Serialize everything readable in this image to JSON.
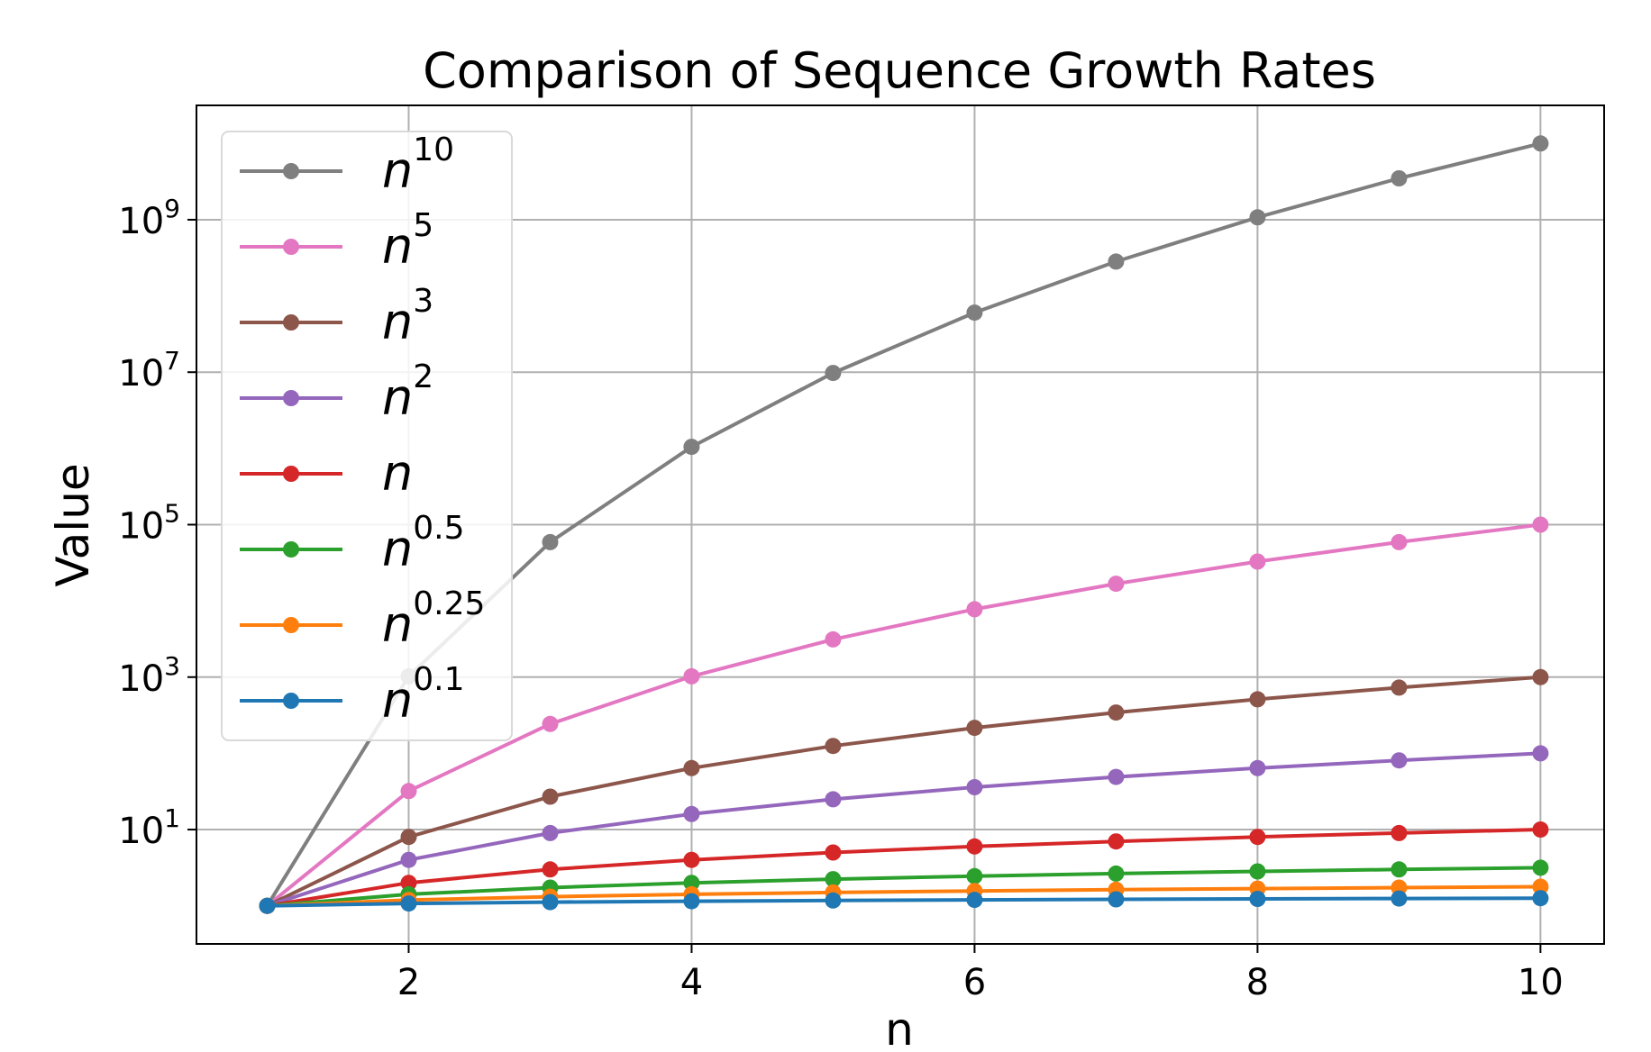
{
  "chart_data": {
    "type": "line",
    "title": "Comparison of Sequence Growth Rates",
    "xlabel": "n",
    "ylabel": "Value",
    "yscale": "log",
    "xlim": [
      0.5,
      10.45
    ],
    "ylim_exponent": [
      -0.5,
      10.5
    ],
    "grid": true,
    "legend_position": "upper-left",
    "x": [
      1,
      2,
      3,
      4,
      5,
      6,
      7,
      8,
      9,
      10
    ],
    "x_ticks": [
      {
        "value": 2,
        "label": "2"
      },
      {
        "value": 4,
        "label": "4"
      },
      {
        "value": 6,
        "label": "6"
      },
      {
        "value": 8,
        "label": "8"
      },
      {
        "value": 10,
        "label": "10"
      }
    ],
    "y_ticks": [
      {
        "exponent": 1,
        "base": "10",
        "sup": "1"
      },
      {
        "exponent": 3,
        "base": "10",
        "sup": "3"
      },
      {
        "exponent": 5,
        "base": "10",
        "sup": "5"
      },
      {
        "exponent": 7,
        "base": "10",
        "sup": "7"
      },
      {
        "exponent": 9,
        "base": "10",
        "sup": "9"
      }
    ],
    "series": [
      {
        "name_base": "n",
        "name_sup": "10",
        "color": "#7f7f7f",
        "values": [
          1,
          1024,
          59049,
          1048576,
          9765625,
          60466176,
          282475249,
          1073741824,
          3486784401,
          10000000000
        ]
      },
      {
        "name_base": "n",
        "name_sup": "5",
        "color": "#e377c2",
        "values": [
          1,
          32,
          243,
          1024,
          3125,
          7776,
          16807,
          32768,
          59049,
          100000
        ]
      },
      {
        "name_base": "n",
        "name_sup": "3",
        "color": "#8c564b",
        "values": [
          1,
          8,
          27,
          64,
          125,
          216,
          343,
          512,
          729,
          1000
        ]
      },
      {
        "name_base": "n",
        "name_sup": "2",
        "color": "#9467bd",
        "values": [
          1,
          4,
          9,
          16,
          25,
          36,
          49,
          64,
          81,
          100
        ]
      },
      {
        "name_base": "n",
        "name_sup": "",
        "color": "#d62728",
        "values": [
          1,
          2,
          3,
          4,
          5,
          6,
          7,
          8,
          9,
          10
        ]
      },
      {
        "name_base": "n",
        "name_sup": "0.5",
        "color": "#2ca02c",
        "values": [
          1,
          1.414,
          1.732,
          2,
          2.236,
          2.449,
          2.646,
          2.828,
          3,
          3.162
        ]
      },
      {
        "name_base": "n",
        "name_sup": "0.25",
        "color": "#ff7f0e",
        "values": [
          1,
          1.189,
          1.316,
          1.414,
          1.495,
          1.565,
          1.627,
          1.682,
          1.732,
          1.778
        ]
      },
      {
        "name_base": "n",
        "name_sup": "0.1",
        "color": "#1f77b4",
        "values": [
          1,
          1.072,
          1.116,
          1.149,
          1.175,
          1.196,
          1.215,
          1.231,
          1.246,
          1.259
        ]
      }
    ]
  }
}
